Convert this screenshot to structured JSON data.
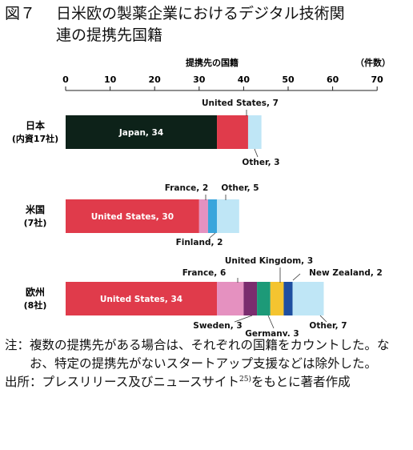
{
  "figure": {
    "label": "図７",
    "title_line1": "日米欧の製薬企業におけるデジタル技術関",
    "title_line2": "連の提携先国籍"
  },
  "notes": [
    {
      "key": "注：",
      "text": "複数の提携先がある場合は、それぞれの国籍をカウントした。なお、特定の提携先がないスタートアップ支援などは除外した。"
    },
    {
      "key": "出所：",
      "text": "プレスリリース及びニュースサイト",
      "sup": "25)",
      "text2": "をもとに著者作成"
    }
  ],
  "chart_data": {
    "type": "bar",
    "orientation": "horizontal",
    "stacked": true,
    "xlabel": "提携先の国籍",
    "unit": "（件数）",
    "xlim": [
      0,
      70
    ],
    "xticks": [
      0,
      10,
      20,
      30,
      40,
      50,
      60,
      70
    ],
    "grid": false,
    "categories": [
      {
        "name": "日本",
        "sub": "(内資17社)"
      },
      {
        "name": "米国",
        "sub": "(7社)"
      },
      {
        "name": "欧州",
        "sub": "(8社)"
      }
    ],
    "bars": [
      {
        "segments": [
          {
            "label": "Japan, 34",
            "value": 34,
            "color": "#0d2219"
          },
          {
            "label": "United States, 7",
            "value": 7,
            "color": "#e03b4b"
          },
          {
            "label": "Other, 3",
            "value": 3,
            "color": "#bfe6f6"
          }
        ]
      },
      {
        "segments": [
          {
            "label": "United States, 30",
            "value": 30,
            "color": "#e03b4b"
          },
          {
            "label": "France, 2",
            "value": 2,
            "color": "#e591c0"
          },
          {
            "label": "Finland, 2",
            "value": 2,
            "color": "#39a5dc"
          },
          {
            "label": "Other, 5",
            "value": 5,
            "color": "#bfe6f6"
          }
        ]
      },
      {
        "segments": [
          {
            "label": "United States, 34",
            "value": 34,
            "color": "#e03b4b"
          },
          {
            "label": "France, 6",
            "value": 6,
            "color": "#e591c0"
          },
          {
            "label": "Sweden, 3",
            "value": 3,
            "color": "#7b2c6e"
          },
          {
            "label": "Germany, 3",
            "value": 3,
            "color": "#1d9a78"
          },
          {
            "label": "United Kingdom, 3",
            "value": 3,
            "color": "#f4c430"
          },
          {
            "label": "New Zealand, 2",
            "value": 2,
            "color": "#1f4fa0"
          },
          {
            "label": "Other, 7",
            "value": 7,
            "color": "#bfe6f6"
          }
        ]
      }
    ]
  }
}
